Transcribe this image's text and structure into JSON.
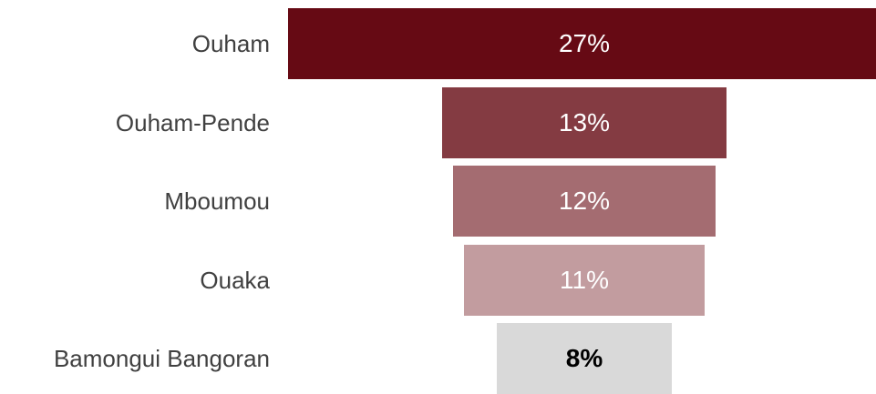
{
  "chart_data": {
    "type": "bar",
    "orientation": "horizontal-funnel",
    "categories": [
      "Ouham",
      "Ouham-Pende",
      "Mboumou",
      "Ouaka",
      "Bamongui Bangoran"
    ],
    "values": [
      27,
      13,
      12,
      11,
      8
    ],
    "data_labels": [
      "27%",
      "13%",
      "12%",
      "11%",
      "8%"
    ],
    "unit": "%",
    "colors": [
      "#660a14",
      "#843b42",
      "#a46c71",
      "#c29c9f",
      "#d9d9d9"
    ],
    "title": "",
    "xlabel": "",
    "ylabel": "",
    "grid": false,
    "legend": "none"
  }
}
